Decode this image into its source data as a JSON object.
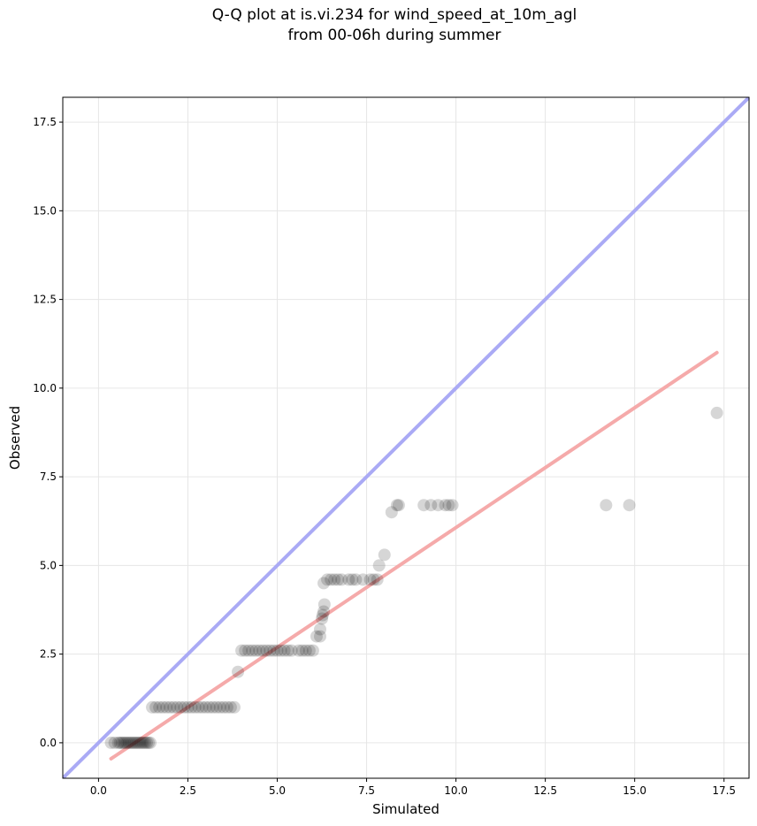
{
  "chart_data": {
    "type": "scatter",
    "title": [
      "Q-Q plot at is.vi.234 for wind_speed_at_10m_agl",
      "from 00-06h during summer"
    ],
    "xlabel": "Simulated",
    "ylabel": "Observed",
    "xlim": [
      -1.0,
      18.2
    ],
    "ylim": [
      -1.0,
      18.2
    ],
    "xticks": [
      "0.0",
      "2.5",
      "5.0",
      "7.5",
      "10.0",
      "12.5",
      "15.0",
      "17.5"
    ],
    "yticks": [
      "0.0",
      "2.5",
      "5.0",
      "7.5",
      "10.0",
      "12.5",
      "15.0",
      "17.5"
    ],
    "grid": true,
    "colors": {
      "points": "#000000",
      "identity_line": "#aaaaf5",
      "fit_line": "#f5aaaa"
    },
    "identity_line": {
      "x": [
        -1.0,
        18.2
      ],
      "y": [
        -1.0,
        18.2
      ]
    },
    "fit_line": {
      "x": [
        0.35,
        17.3
      ],
      "y": [
        -0.45,
        11.0
      ]
    },
    "points": [
      [
        0.35,
        0.0
      ],
      [
        0.45,
        0.0
      ],
      [
        0.55,
        0.0
      ],
      [
        0.6,
        0.0
      ],
      [
        0.65,
        0.0
      ],
      [
        0.7,
        0.0
      ],
      [
        0.75,
        0.0
      ],
      [
        0.8,
        0.0
      ],
      [
        0.85,
        0.0
      ],
      [
        0.9,
        0.0
      ],
      [
        0.95,
        0.0
      ],
      [
        1.0,
        0.0
      ],
      [
        1.05,
        0.0
      ],
      [
        1.1,
        0.0
      ],
      [
        1.15,
        0.0
      ],
      [
        1.2,
        0.0
      ],
      [
        1.25,
        0.0
      ],
      [
        1.3,
        0.0
      ],
      [
        1.35,
        0.0
      ],
      [
        1.4,
        0.0
      ],
      [
        1.45,
        0.0
      ],
      [
        1.5,
        1.0
      ],
      [
        1.6,
        1.0
      ],
      [
        1.7,
        1.0
      ],
      [
        1.8,
        1.0
      ],
      [
        1.9,
        1.0
      ],
      [
        2.0,
        1.0
      ],
      [
        2.1,
        1.0
      ],
      [
        2.2,
        1.0
      ],
      [
        2.3,
        1.0
      ],
      [
        2.4,
        1.0
      ],
      [
        2.5,
        1.0
      ],
      [
        2.6,
        1.0
      ],
      [
        2.7,
        1.0
      ],
      [
        2.8,
        1.0
      ],
      [
        2.9,
        1.0
      ],
      [
        3.0,
        1.0
      ],
      [
        3.1,
        1.0
      ],
      [
        3.2,
        1.0
      ],
      [
        3.3,
        1.0
      ],
      [
        3.4,
        1.0
      ],
      [
        3.5,
        1.0
      ],
      [
        3.6,
        1.0
      ],
      [
        3.7,
        1.0
      ],
      [
        3.8,
        1.0
      ],
      [
        3.9,
        2.0
      ],
      [
        4.0,
        2.6
      ],
      [
        4.1,
        2.6
      ],
      [
        4.2,
        2.6
      ],
      [
        4.3,
        2.6
      ],
      [
        4.4,
        2.6
      ],
      [
        4.5,
        2.6
      ],
      [
        4.6,
        2.6
      ],
      [
        4.7,
        2.6
      ],
      [
        4.8,
        2.6
      ],
      [
        4.9,
        2.6
      ],
      [
        5.0,
        2.6
      ],
      [
        5.1,
        2.6
      ],
      [
        5.2,
        2.6
      ],
      [
        5.3,
        2.6
      ],
      [
        5.4,
        2.6
      ],
      [
        5.6,
        2.6
      ],
      [
        5.7,
        2.6
      ],
      [
        5.8,
        2.6
      ],
      [
        5.9,
        2.6
      ],
      [
        6.0,
        2.6
      ],
      [
        6.1,
        3.0
      ],
      [
        6.2,
        3.0
      ],
      [
        6.2,
        3.2
      ],
      [
        6.25,
        3.5
      ],
      [
        6.27,
        3.6
      ],
      [
        6.3,
        3.7
      ],
      [
        6.32,
        3.9
      ],
      [
        6.3,
        4.5
      ],
      [
        6.4,
        4.6
      ],
      [
        6.5,
        4.6
      ],
      [
        6.6,
        4.6
      ],
      [
        6.7,
        4.6
      ],
      [
        6.8,
        4.6
      ],
      [
        7.0,
        4.6
      ],
      [
        7.1,
        4.6
      ],
      [
        7.2,
        4.6
      ],
      [
        7.4,
        4.6
      ],
      [
        7.6,
        4.6
      ],
      [
        7.7,
        4.6
      ],
      [
        7.8,
        4.6
      ],
      [
        7.85,
        5.0
      ],
      [
        8.0,
        5.3
      ],
      [
        8.2,
        6.5
      ],
      [
        8.35,
        6.7
      ],
      [
        8.4,
        6.7
      ],
      [
        9.1,
        6.7
      ],
      [
        9.3,
        6.7
      ],
      [
        9.5,
        6.7
      ],
      [
        9.7,
        6.7
      ],
      [
        9.8,
        6.7
      ],
      [
        9.9,
        6.7
      ],
      [
        14.2,
        6.7
      ],
      [
        14.85,
        6.7
      ],
      [
        17.3,
        9.3
      ]
    ]
  }
}
